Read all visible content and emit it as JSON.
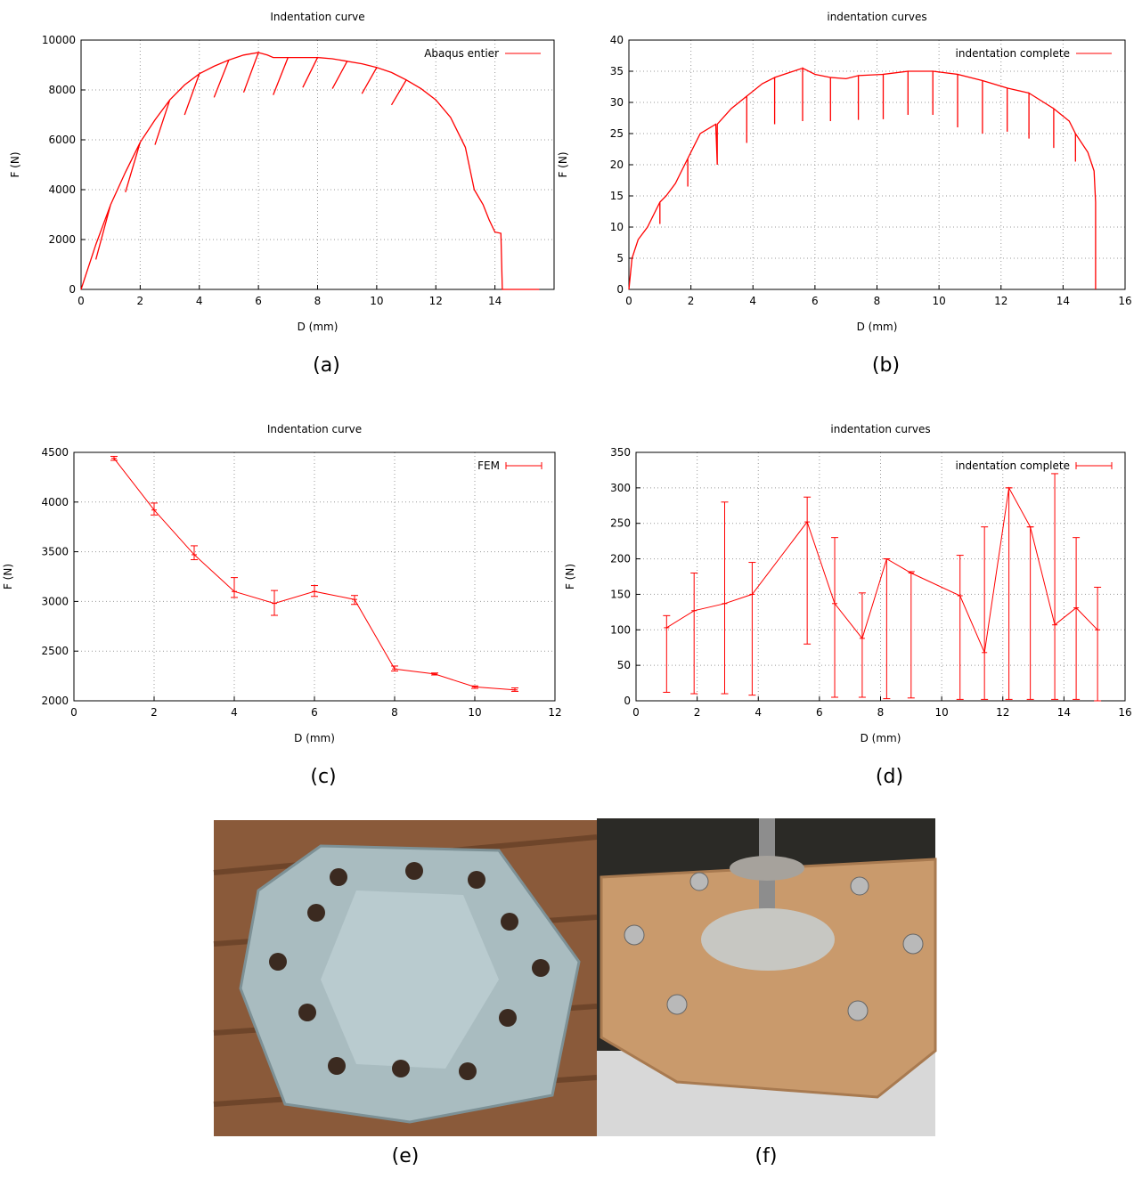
{
  "chart_data": [
    {
      "type": "line",
      "title": "Indentation curve",
      "xlabel": "D (mm)",
      "ylabel": "F (N)",
      "caption": "(a)",
      "xlim": [
        0,
        16
      ],
      "xticks": [
        0,
        2,
        4,
        6,
        8,
        10,
        12,
        14
      ],
      "ylim": [
        0,
        10000
      ],
      "yticks": [
        0,
        2000,
        4000,
        6000,
        8000,
        10000
      ],
      "grid": true,
      "legend": "upper right",
      "x": [
        0,
        0.5,
        1,
        0.5,
        1,
        1.5,
        2,
        1.5,
        2,
        2.5,
        3,
        2.5,
        3,
        3.5,
        4,
        3.5,
        4,
        4.5,
        5,
        4.5,
        5,
        5.5,
        6,
        5.5,
        6,
        6.3,
        6.5,
        7,
        6.5,
        7,
        7.5,
        8,
        7.5,
        8,
        8.5,
        9,
        8.5,
        9,
        9.5,
        10,
        9.5,
        10,
        10.5,
        11,
        10.5,
        11,
        11.5,
        12,
        12.5,
        13,
        13.3,
        13.6,
        13.8,
        14,
        14.2,
        14.25,
        15.5
      ],
      "series": [
        {
          "name": "Abaqus entier",
          "color": "#ff0000",
          "values": [
            0,
            1800,
            3400,
            1200,
            3400,
            4700,
            5900,
            3900,
            5900,
            6800,
            7600,
            5800,
            7600,
            8200,
            8650,
            7000,
            8650,
            8950,
            9200,
            7700,
            9200,
            9400,
            9500,
            7900,
            9500,
            9400,
            9300,
            9300,
            7800,
            9300,
            9300,
            9300,
            8100,
            9300,
            9250,
            9150,
            8050,
            9150,
            9050,
            8900,
            7850,
            8900,
            8700,
            8400,
            7400,
            8400,
            8050,
            7600,
            6900,
            5700,
            4000,
            3400,
            2800,
            2300,
            2250,
            0,
            0
          ]
        }
      ]
    },
    {
      "type": "line",
      "title": "indentation curves",
      "xlabel": "D (mm)",
      "ylabel": "F (N)",
      "caption": "(b)",
      "xlim": [
        0,
        16
      ],
      "xticks": [
        0,
        2,
        4,
        6,
        8,
        10,
        12,
        14,
        16
      ],
      "ylim": [
        0,
        40
      ],
      "yticks": [
        0,
        5,
        10,
        15,
        20,
        25,
        30,
        35,
        40
      ],
      "grid": true,
      "legend": "upper right",
      "x": [
        0,
        0.1,
        0.3,
        0.6,
        0.9,
        1,
        1,
        1,
        1.2,
        1.5,
        1.9,
        1.9,
        1.9,
        2.3,
        2.8,
        2.85,
        2.85,
        3.3,
        3.8,
        3.8,
        3.8,
        4.3,
        4.7,
        4.7,
        4.7,
        5.6,
        5.6,
        5.6,
        6,
        6.5,
        6.5,
        6.5,
        7,
        7.4,
        7.4,
        7.4,
        8.2,
        8.2,
        8.2,
        9,
        9,
        9,
        9.8,
        9.8,
        9.8,
        10.6,
        10.6,
        10.6,
        11.4,
        11.4,
        11.4,
        12.2,
        12.2,
        12.2,
        12.9,
        12.9,
        12.9,
        13.7,
        13.7,
        13.7,
        14.2,
        14.4,
        14.4,
        14.4,
        14.8,
        15,
        15.05,
        15.05
      ],
      "series": [
        {
          "name": "indentation complete",
          "color": "#ff0000",
          "values": [
            0,
            5,
            8,
            10,
            13,
            14,
            10.5,
            14,
            15,
            17,
            21,
            16.5,
            21,
            25,
            26.5,
            20,
            26.5,
            29,
            31,
            23.5,
            31,
            33,
            34,
            26.5,
            34,
            35.5,
            27,
            35.5,
            34.5,
            34,
            27,
            34,
            33.8,
            34.3,
            27.2,
            34.3,
            34.5,
            27.3,
            34.5,
            35,
            28,
            35,
            35,
            28,
            35,
            34.5,
            26,
            34.5,
            33.5,
            25,
            33.5,
            32.3,
            25.3,
            32.3,
            31.5,
            24.2,
            31.5,
            29,
            22.7,
            29,
            27,
            25,
            20.5,
            25,
            22,
            19,
            14,
            0
          ]
        }
      ]
    },
    {
      "type": "errorbar",
      "title": "Indentation curve",
      "xlabel": "D (mm)",
      "ylabel": "F (N)",
      "caption": "(c)",
      "xlim": [
        0,
        12
      ],
      "xticks": [
        0,
        2,
        4,
        6,
        8,
        10,
        12
      ],
      "ylim": [
        2000,
        4500
      ],
      "yticks": [
        2000,
        2500,
        3000,
        3500,
        4000,
        4500
      ],
      "grid": true,
      "legend": "upper right",
      "x": [
        1,
        2,
        3,
        4,
        5,
        6,
        7,
        8,
        9,
        10,
        11
      ],
      "series": [
        {
          "name": "FEM",
          "color": "#ff0000",
          "values": [
            4440,
            3920,
            3470,
            3100,
            2980,
            3100,
            3020,
            2320,
            2270,
            2140,
            2110
          ],
          "lower": [
            4420,
            3870,
            3420,
            3040,
            2860,
            3050,
            2970,
            2300,
            2260,
            2125,
            2095
          ],
          "upper": [
            4460,
            3990,
            3560,
            3240,
            3110,
            3160,
            3060,
            2350,
            2280,
            2150,
            2130
          ]
        }
      ]
    },
    {
      "type": "errorbar",
      "title": "indentation curves",
      "xlabel": "D (mm)",
      "ylabel": "F (N)",
      "caption": "(d)",
      "xlim": [
        0,
        16
      ],
      "xticks": [
        0,
        2,
        4,
        6,
        8,
        10,
        12,
        14,
        16
      ],
      "ylim": [
        0,
        350
      ],
      "yticks": [
        0,
        50,
        100,
        150,
        200,
        250,
        300,
        350
      ],
      "grid": true,
      "legend": "upper right",
      "x": [
        1,
        1.9,
        2.9,
        3.8,
        5.6,
        6.5,
        7.4,
        8.2,
        9,
        10.6,
        11.4,
        12.2,
        12.9,
        13.7,
        14.4,
        15.1
      ],
      "series": [
        {
          "name": "indentation complete",
          "color": "#ff0000",
          "values": [
            103,
            127,
            137,
            150,
            252,
            137,
            88,
            200,
            180,
            148,
            68,
            300,
            245,
            107,
            131,
            100
          ],
          "lower": [
            12,
            10,
            10,
            8,
            80,
            5,
            5,
            3,
            4,
            2,
            2,
            2,
            2,
            2,
            2,
            0
          ],
          "upper": [
            120,
            180,
            280,
            195,
            287,
            230,
            152,
            200,
            182,
            205,
            245,
            300,
            245,
            320,
            230,
            160
          ]
        }
      ]
    }
  ],
  "images": [
    {
      "caption": "(e)"
    },
    {
      "caption": "(f)"
    }
  ]
}
